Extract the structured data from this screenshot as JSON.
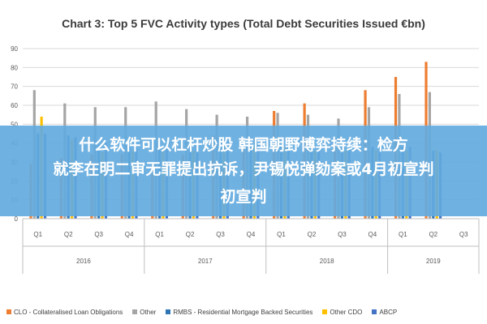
{
  "overlay": {
    "line1": "什么软件可以杠杆炒股 韩国朝野博弈持续：检方",
    "line2": "就李在明二审无罪提出抗诉，尹锡悦弹劾案或4月初宣判",
    "line3": "初宣判"
  },
  "colors": {
    "CLO": "#ED7D31",
    "Other": "#A5A5A5",
    "RMBS": "#2E75B6",
    "OtherCDO": "#FFC000",
    "ABCP": "#4472C4"
  },
  "chart_data": {
    "type": "bar",
    "title": "Chart 3: Top 5 FVC Activity types (Total Debt Securities Issued €bn)",
    "ylim": [
      0,
      90
    ],
    "yticks": [
      "0",
      "10",
      "20",
      "30",
      "40",
      "50",
      "60",
      "70",
      "80",
      "90"
    ],
    "grid": true,
    "legend_position": "bottom",
    "categories": [
      "Q1",
      "Q2",
      "Q3",
      "Q4",
      "Q1",
      "Q2",
      "Q3",
      "Q4",
      "Q1",
      "Q2",
      "Q3",
      "Q4",
      "Q1",
      "Q2",
      "Q3"
    ],
    "groups": [
      {
        "label": "2016",
        "count": 4
      },
      {
        "label": "2017",
        "count": 4
      },
      {
        "label": "2018",
        "count": 4
      },
      {
        "label": "2019",
        "count": 3
      }
    ],
    "series": [
      {
        "name": "CLO - Collateralised Loan Obligations",
        "color": "#ED7D31",
        "values": [
          29,
          32,
          34,
          34,
          29,
          34,
          44,
          38,
          57,
          61,
          38,
          68,
          75,
          83,
          0
        ]
      },
      {
        "name": "Other",
        "color": "#A5A5A5",
        "values": [
          68,
          61,
          59,
          59,
          62,
          58,
          55,
          54,
          56,
          55,
          53,
          59,
          66,
          67,
          0
        ]
      },
      {
        "name": "RMBS - Residential Mortgage Backed Securities",
        "color": "#2E75B6",
        "values": [
          45,
          44,
          39,
          38,
          38,
          39,
          41,
          39,
          39,
          39,
          35,
          38,
          38,
          36,
          0
        ]
      },
      {
        "name": "Other CDO",
        "color": "#FFC000",
        "values": [
          54,
          42,
          35,
          36,
          38,
          36,
          38,
          38,
          38,
          36,
          36,
          36,
          36,
          36,
          0
        ]
      },
      {
        "name": "ABCP",
        "color": "#4472C4",
        "values": [
          45,
          43,
          40,
          39,
          39,
          40,
          41,
          40,
          40,
          40,
          37,
          40,
          38,
          35,
          0
        ]
      }
    ]
  }
}
